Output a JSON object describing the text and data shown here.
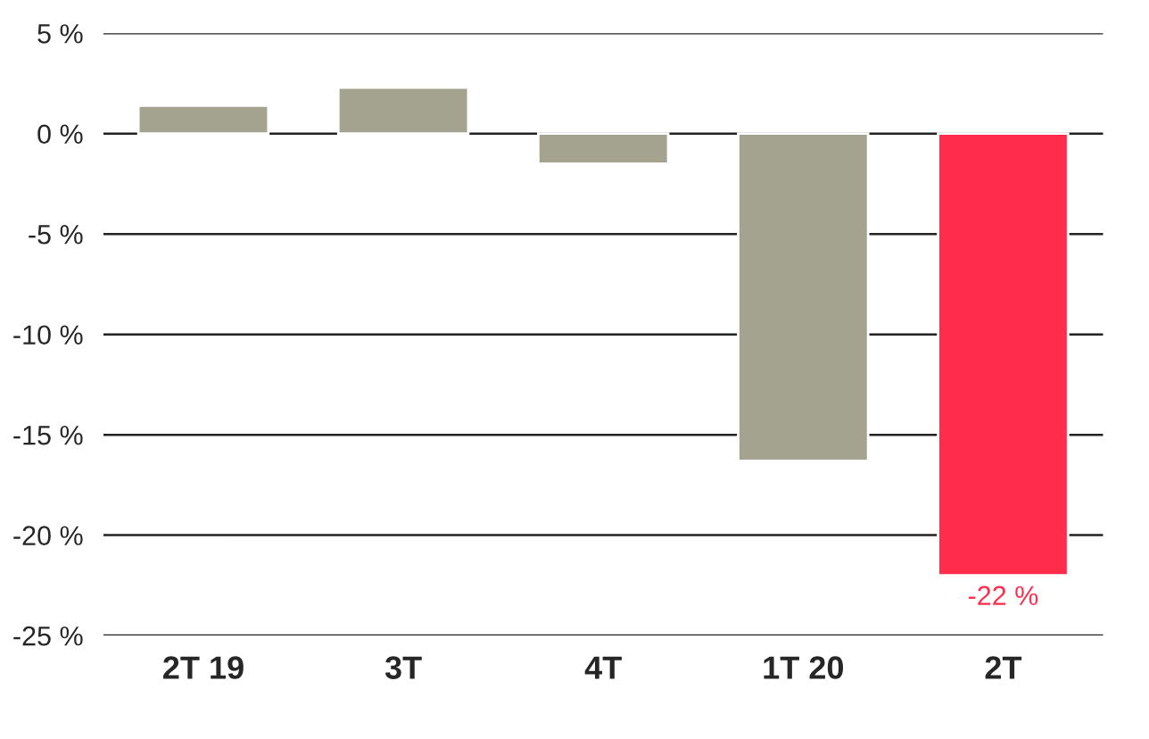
{
  "chart_data": {
    "type": "bar",
    "categories": [
      "2T 19",
      "3T",
      "4T",
      "1T 20",
      "2T"
    ],
    "values": [
      1.4,
      2.3,
      -1.5,
      -16.3,
      -22
    ],
    "colors": [
      "#a3a38f",
      "#a3a38f",
      "#a3a38f",
      "#a3a38f",
      "#ff2d4b"
    ],
    "value_labels": [
      null,
      null,
      null,
      null,
      "-22 %"
    ],
    "ylim": [
      -25,
      5
    ],
    "yticks": [
      {
        "value": 5,
        "label": "5 %"
      },
      {
        "value": 0,
        "label": "0 %"
      },
      {
        "value": -5,
        "label": "-5 %"
      },
      {
        "value": -10,
        "label": "-10 %"
      },
      {
        "value": -15,
        "label": "-15 %"
      },
      {
        "value": -20,
        "label": "-20 %"
      },
      {
        "value": -25,
        "label": "-25 %"
      }
    ],
    "grid": "y"
  }
}
